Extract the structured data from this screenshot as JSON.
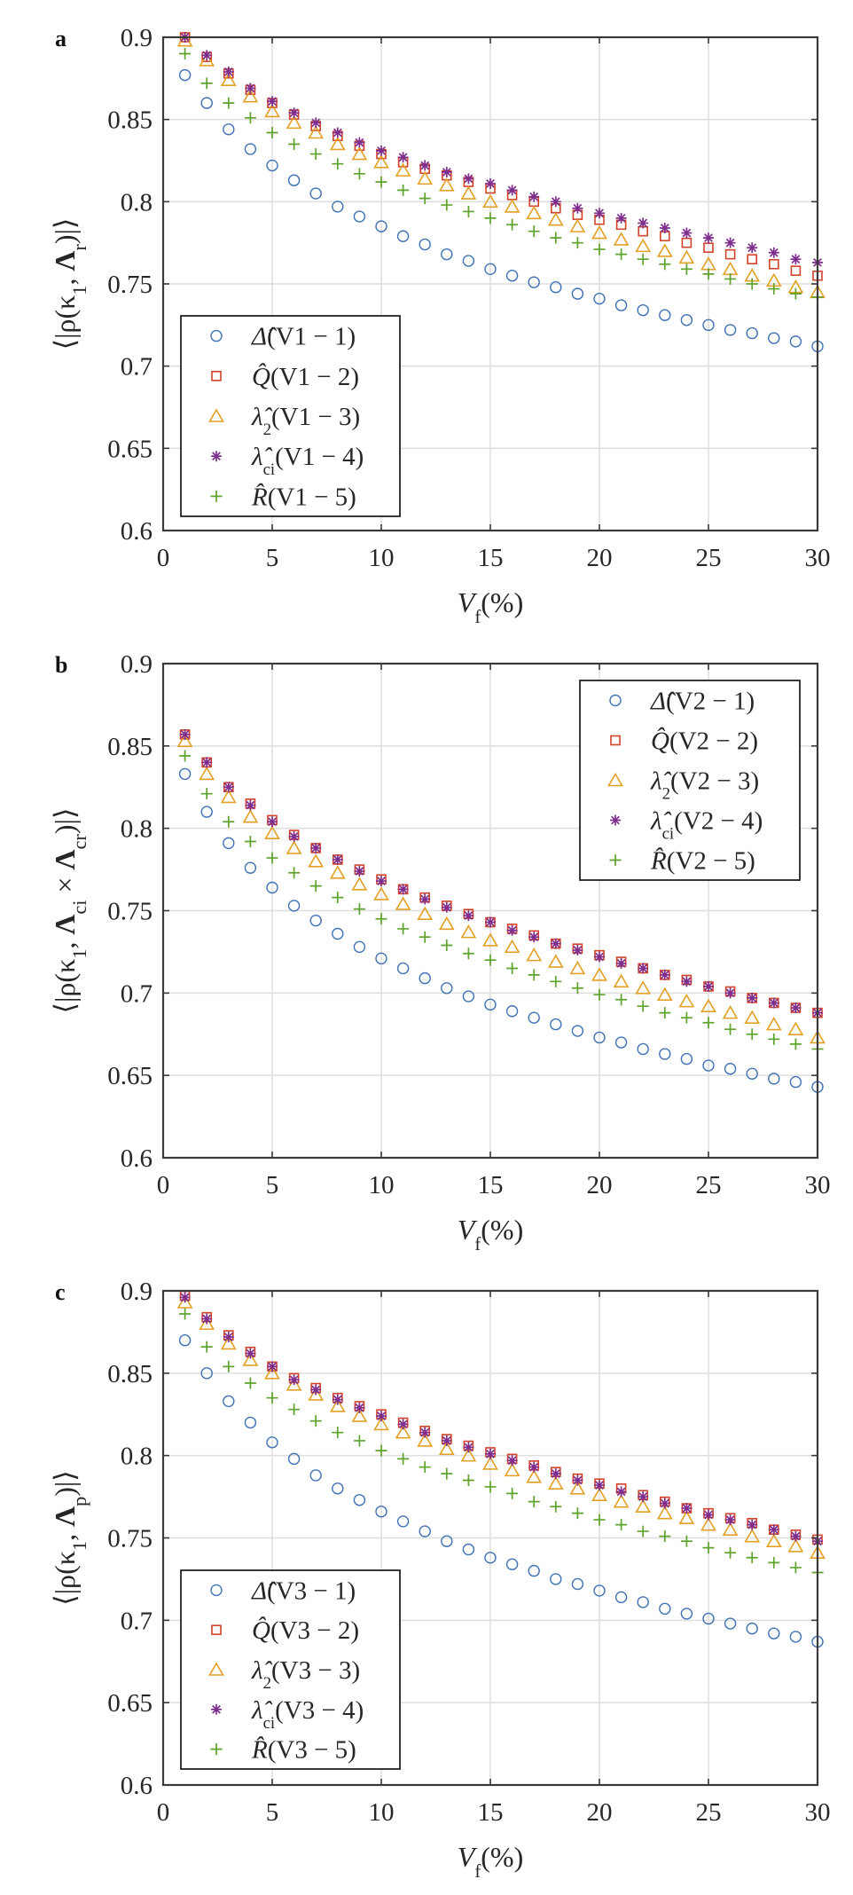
{
  "colors": {
    "delta": "#3f72b5",
    "Q": "#d2432a",
    "lambda2": "#e3a024",
    "lambda_ci": "#7e2f8e",
    "R": "#5ea32c",
    "grid": "#dedede",
    "axis": "#3a3a3a"
  },
  "chart_data": [
    {
      "type": "scatter",
      "panel_letter": "a",
      "x": [
        1,
        2,
        3,
        4,
        5,
        6,
        7,
        8,
        9,
        10,
        11,
        12,
        13,
        14,
        15,
        16,
        17,
        18,
        19,
        20,
        21,
        22,
        23,
        24,
        25,
        26,
        27,
        28,
        29,
        30
      ],
      "xlim": [
        0,
        30
      ],
      "ylim": [
        0.6,
        0.9
      ],
      "xticks": [
        "0",
        "5",
        "10",
        "15",
        "20",
        "25",
        "30"
      ],
      "yticks": [
        "0.6",
        "0.65",
        "0.7",
        "0.75",
        "0.8",
        "0.85",
        "0.9"
      ],
      "xlabel": {
        "main": "V",
        "sub": "f",
        "rest": "(%)"
      },
      "ylabel": [
        {
          "t": "⟨|ρ(κ"
        },
        {
          "t": "1",
          "sub": true
        },
        {
          "t": ", "
        },
        {
          "t": "Λ",
          "bold": true
        },
        {
          "t": "r",
          "sub": true
        },
        {
          "t": ")|⟩"
        }
      ],
      "grid": true,
      "legend_position": "bottom-left",
      "series": [
        {
          "key": "delta",
          "marker": "circle",
          "label": {
            "sym": "Δ̂",
            "sub": "",
            "text": "(V1 − 1)"
          },
          "values": [
            0.877,
            0.86,
            0.844,
            0.832,
            0.822,
            0.813,
            0.805,
            0.797,
            0.791,
            0.785,
            0.779,
            0.774,
            0.768,
            0.764,
            0.759,
            0.755,
            0.751,
            0.748,
            0.744,
            0.741,
            0.737,
            0.734,
            0.731,
            0.728,
            0.725,
            0.722,
            0.72,
            0.717,
            0.715,
            0.712
          ]
        },
        {
          "key": "Q",
          "marker": "square",
          "label": {
            "sym": "Q̂",
            "sub": "",
            "text": "(V1 − 2)"
          },
          "values": [
            0.9,
            0.888,
            0.878,
            0.868,
            0.86,
            0.853,
            0.846,
            0.84,
            0.834,
            0.829,
            0.824,
            0.82,
            0.816,
            0.812,
            0.808,
            0.804,
            0.8,
            0.796,
            0.792,
            0.789,
            0.786,
            0.782,
            0.779,
            0.775,
            0.772,
            0.768,
            0.765,
            0.762,
            0.758,
            0.755
          ]
        },
        {
          "key": "lambda2",
          "marker": "triangle",
          "label": {
            "sym": "λ̂",
            "sub": "2",
            "text": "(V1 − 3)"
          },
          "values": [
            0.898,
            0.886,
            0.874,
            0.864,
            0.855,
            0.848,
            0.842,
            0.835,
            0.829,
            0.824,
            0.819,
            0.814,
            0.81,
            0.805,
            0.8,
            0.797,
            0.793,
            0.789,
            0.785,
            0.781,
            0.777,
            0.773,
            0.77,
            0.766,
            0.762,
            0.759,
            0.755,
            0.752,
            0.748,
            0.745
          ]
        },
        {
          "key": "lambda_ci",
          "marker": "star",
          "label": {
            "sym": "λ̂",
            "sub": "ci",
            "text": "(V1 − 4)"
          },
          "values": [
            0.9,
            0.889,
            0.879,
            0.869,
            0.861,
            0.854,
            0.848,
            0.842,
            0.836,
            0.831,
            0.827,
            0.822,
            0.818,
            0.814,
            0.811,
            0.807,
            0.803,
            0.8,
            0.796,
            0.793,
            0.79,
            0.787,
            0.784,
            0.781,
            0.778,
            0.775,
            0.772,
            0.769,
            0.765,
            0.763
          ]
        },
        {
          "key": "R",
          "marker": "plus",
          "label": {
            "sym": "R̂",
            "sub": "",
            "text": "(V1 − 5)"
          },
          "values": [
            0.89,
            0.872,
            0.86,
            0.851,
            0.842,
            0.835,
            0.829,
            0.823,
            0.817,
            0.812,
            0.807,
            0.802,
            0.798,
            0.794,
            0.79,
            0.786,
            0.782,
            0.778,
            0.775,
            0.771,
            0.768,
            0.765,
            0.762,
            0.759,
            0.756,
            0.753,
            0.75,
            0.747,
            0.744,
            0.742
          ]
        }
      ]
    },
    {
      "type": "scatter",
      "panel_letter": "b",
      "x": [
        1,
        2,
        3,
        4,
        5,
        6,
        7,
        8,
        9,
        10,
        11,
        12,
        13,
        14,
        15,
        16,
        17,
        18,
        19,
        20,
        21,
        22,
        23,
        24,
        25,
        26,
        27,
        28,
        29,
        30
      ],
      "xlim": [
        0,
        30
      ],
      "ylim": [
        0.6,
        0.9
      ],
      "xticks": [
        "0",
        "5",
        "10",
        "15",
        "20",
        "25",
        "30"
      ],
      "yticks": [
        "0.6",
        "0.65",
        "0.7",
        "0.75",
        "0.8",
        "0.85",
        "0.9"
      ],
      "xlabel": {
        "main": "V",
        "sub": "f",
        "rest": "(%)"
      },
      "ylabel": [
        {
          "t": "⟨|ρ(κ"
        },
        {
          "t": "1",
          "sub": true
        },
        {
          "t": ", "
        },
        {
          "t": "Λ",
          "bold": true
        },
        {
          "t": "ci",
          "sub": true
        },
        {
          "t": " × "
        },
        {
          "t": "Λ",
          "bold": true
        },
        {
          "t": "cr",
          "sub": true
        },
        {
          "t": ")|⟩"
        }
      ],
      "grid": true,
      "legend_position": "top-right",
      "series": [
        {
          "key": "delta",
          "marker": "circle",
          "label": {
            "sym": "Δ̂",
            "sub": "",
            "text": "(V2 − 1)"
          },
          "values": [
            0.833,
            0.81,
            0.791,
            0.776,
            0.764,
            0.753,
            0.744,
            0.736,
            0.728,
            0.721,
            0.715,
            0.709,
            0.703,
            0.698,
            0.693,
            0.689,
            0.685,
            0.681,
            0.677,
            0.673,
            0.67,
            0.666,
            0.663,
            0.66,
            0.656,
            0.654,
            0.651,
            0.648,
            0.646,
            0.643
          ]
        },
        {
          "key": "Q",
          "marker": "square",
          "label": {
            "sym": "Q̂",
            "sub": "",
            "text": "(V2 − 2)"
          },
          "values": [
            0.857,
            0.84,
            0.825,
            0.815,
            0.805,
            0.796,
            0.788,
            0.781,
            0.775,
            0.769,
            0.763,
            0.758,
            0.753,
            0.748,
            0.743,
            0.739,
            0.735,
            0.73,
            0.727,
            0.723,
            0.719,
            0.715,
            0.711,
            0.708,
            0.704,
            0.701,
            0.697,
            0.694,
            0.691,
            0.688
          ]
        },
        {
          "key": "lambda2",
          "marker": "triangle",
          "label": {
            "sym": "λ̂",
            "sub": "2",
            "text": "(V2 − 3)"
          },
          "values": [
            0.853,
            0.833,
            0.819,
            0.807,
            0.797,
            0.788,
            0.78,
            0.773,
            0.766,
            0.76,
            0.754,
            0.748,
            0.742,
            0.737,
            0.732,
            0.728,
            0.723,
            0.719,
            0.715,
            0.711,
            0.707,
            0.703,
            0.699,
            0.695,
            0.692,
            0.688,
            0.685,
            0.681,
            0.678,
            0.673
          ]
        },
        {
          "key": "lambda_ci",
          "marker": "star",
          "label": {
            "sym": "λ̂",
            "sub": "ci",
            "text": "(V2 − 4)"
          },
          "values": [
            0.857,
            0.84,
            0.825,
            0.814,
            0.804,
            0.795,
            0.788,
            0.781,
            0.774,
            0.768,
            0.763,
            0.757,
            0.752,
            0.747,
            0.743,
            0.738,
            0.734,
            0.73,
            0.726,
            0.722,
            0.718,
            0.715,
            0.711,
            0.707,
            0.704,
            0.7,
            0.697,
            0.694,
            0.691,
            0.688
          ]
        },
        {
          "key": "R",
          "marker": "plus",
          "label": {
            "sym": "R̂",
            "sub": "",
            "text": "(V2 − 5)"
          },
          "values": [
            0.844,
            0.821,
            0.804,
            0.792,
            0.782,
            0.773,
            0.765,
            0.758,
            0.751,
            0.745,
            0.739,
            0.734,
            0.729,
            0.724,
            0.72,
            0.715,
            0.711,
            0.707,
            0.703,
            0.699,
            0.696,
            0.692,
            0.688,
            0.685,
            0.682,
            0.678,
            0.675,
            0.672,
            0.669,
            0.666
          ]
        }
      ]
    },
    {
      "type": "scatter",
      "panel_letter": "c",
      "x": [
        1,
        2,
        3,
        4,
        5,
        6,
        7,
        8,
        9,
        10,
        11,
        12,
        13,
        14,
        15,
        16,
        17,
        18,
        19,
        20,
        21,
        22,
        23,
        24,
        25,
        26,
        27,
        28,
        29,
        30
      ],
      "xlim": [
        0,
        30
      ],
      "ylim": [
        0.6,
        0.9
      ],
      "xticks": [
        "0",
        "5",
        "10",
        "15",
        "20",
        "25",
        "30"
      ],
      "yticks": [
        "0.6",
        "0.65",
        "0.7",
        "0.75",
        "0.8",
        "0.85",
        "0.9"
      ],
      "xlabel": {
        "main": "V",
        "sub": "f",
        "rest": "(%)"
      },
      "ylabel": [
        {
          "t": "⟨|ρ(κ"
        },
        {
          "t": "1",
          "sub": true
        },
        {
          "t": ", "
        },
        {
          "t": "Λ",
          "bold": true
        },
        {
          "t": "p",
          "sub": true
        },
        {
          "t": ")|⟩"
        }
      ],
      "grid": true,
      "legend_position": "bottom-left",
      "series": [
        {
          "key": "delta",
          "marker": "circle",
          "label": {
            "sym": "Δ̂",
            "sub": "",
            "text": "(V3 − 1)"
          },
          "values": [
            0.87,
            0.85,
            0.833,
            0.82,
            0.808,
            0.798,
            0.788,
            0.78,
            0.773,
            0.766,
            0.76,
            0.754,
            0.748,
            0.743,
            0.738,
            0.734,
            0.73,
            0.725,
            0.722,
            0.718,
            0.714,
            0.711,
            0.707,
            0.704,
            0.701,
            0.698,
            0.695,
            0.692,
            0.69,
            0.687
          ]
        },
        {
          "key": "Q",
          "marker": "square",
          "label": {
            "sym": "Q̂",
            "sub": "",
            "text": "(V3 − 2)"
          },
          "values": [
            0.897,
            0.884,
            0.873,
            0.863,
            0.854,
            0.847,
            0.841,
            0.835,
            0.83,
            0.825,
            0.82,
            0.815,
            0.81,
            0.806,
            0.802,
            0.798,
            0.794,
            0.79,
            0.786,
            0.783,
            0.78,
            0.776,
            0.772,
            0.768,
            0.765,
            0.762,
            0.759,
            0.755,
            0.752,
            0.749
          ]
        },
        {
          "key": "lambda2",
          "marker": "triangle",
          "label": {
            "sym": "λ̂",
            "sub": "2",
            "text": "(V3 − 3)"
          },
          "values": [
            0.893,
            0.88,
            0.868,
            0.858,
            0.85,
            0.843,
            0.837,
            0.83,
            0.824,
            0.819,
            0.814,
            0.809,
            0.804,
            0.8,
            0.795,
            0.791,
            0.787,
            0.783,
            0.78,
            0.776,
            0.772,
            0.769,
            0.765,
            0.762,
            0.758,
            0.755,
            0.751,
            0.748,
            0.745,
            0.741
          ]
        },
        {
          "key": "lambda_ci",
          "marker": "star",
          "label": {
            "sym": "λ̂",
            "sub": "ci",
            "text": "(V3 − 4)"
          },
          "values": [
            0.896,
            0.883,
            0.872,
            0.862,
            0.854,
            0.846,
            0.84,
            0.834,
            0.829,
            0.824,
            0.819,
            0.814,
            0.809,
            0.805,
            0.801,
            0.797,
            0.793,
            0.789,
            0.785,
            0.782,
            0.778,
            0.775,
            0.771,
            0.768,
            0.764,
            0.761,
            0.758,
            0.755,
            0.751,
            0.748
          ]
        },
        {
          "key": "R",
          "marker": "plus",
          "label": {
            "sym": "R̂",
            "sub": "",
            "text": "(V3 − 5)"
          },
          "values": [
            0.886,
            0.866,
            0.854,
            0.844,
            0.835,
            0.828,
            0.821,
            0.814,
            0.809,
            0.803,
            0.798,
            0.793,
            0.789,
            0.785,
            0.781,
            0.777,
            0.772,
            0.769,
            0.765,
            0.761,
            0.758,
            0.754,
            0.751,
            0.748,
            0.744,
            0.741,
            0.738,
            0.735,
            0.732,
            0.729
          ]
        }
      ]
    }
  ]
}
